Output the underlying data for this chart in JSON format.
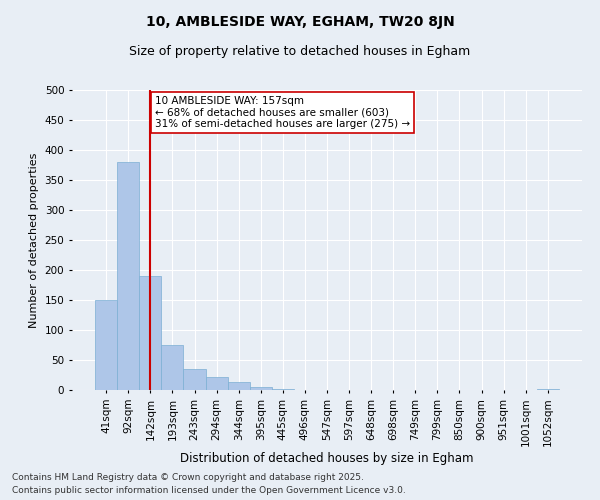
{
  "title1": "10, AMBLESIDE WAY, EGHAM, TW20 8JN",
  "title2": "Size of property relative to detached houses in Egham",
  "xlabel": "Distribution of detached houses by size in Egham",
  "ylabel": "Number of detached properties",
  "categories": [
    "41sqm",
    "92sqm",
    "142sqm",
    "193sqm",
    "243sqm",
    "294sqm",
    "344sqm",
    "395sqm",
    "445sqm",
    "496sqm",
    "547sqm",
    "597sqm",
    "648sqm",
    "698sqm",
    "749sqm",
    "799sqm",
    "850sqm",
    "900sqm",
    "951sqm",
    "1001sqm",
    "1052sqm"
  ],
  "values": [
    150,
    380,
    190,
    75,
    35,
    22,
    13,
    5,
    1,
    0,
    0,
    0,
    0,
    0,
    0,
    0,
    0,
    0,
    0,
    0,
    1
  ],
  "bar_color": "#aec6e8",
  "bar_edge_color": "#7bafd4",
  "vline_x": 2.0,
  "vline_color": "#cc0000",
  "annotation_text": "10 AMBLESIDE WAY: 157sqm\n← 68% of detached houses are smaller (603)\n31% of semi-detached houses are larger (275) →",
  "annotation_box_color": "#ffffff",
  "annotation_box_edge": "#cc0000",
  "ylim": [
    0,
    500
  ],
  "yticks": [
    0,
    50,
    100,
    150,
    200,
    250,
    300,
    350,
    400,
    450,
    500
  ],
  "bg_color": "#e8eef5",
  "footer1": "Contains HM Land Registry data © Crown copyright and database right 2025.",
  "footer2": "Contains public sector information licensed under the Open Government Licence v3.0.",
  "title1_fontsize": 10,
  "title2_fontsize": 9,
  "xlabel_fontsize": 8.5,
  "ylabel_fontsize": 8,
  "tick_fontsize": 7.5,
  "annotation_fontsize": 7.5,
  "footer_fontsize": 6.5
}
